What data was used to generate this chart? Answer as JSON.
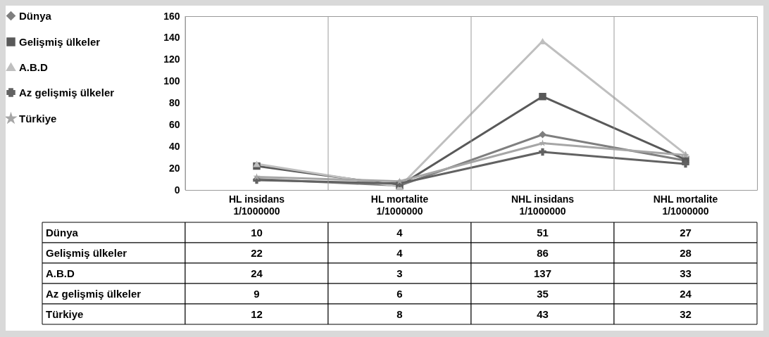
{
  "chart_data": {
    "type": "line",
    "categories": [
      "HL insidans 1/1000000",
      "HL mortalite 1/1000000",
      "NHL insidans 1/1000000",
      "NHL mortalite 1/1000000"
    ],
    "series": [
      {
        "name": "Dünya",
        "color": "#7f7f7f",
        "marker": "diamond",
        "values": [
          10,
          4,
          51,
          27
        ]
      },
      {
        "name": "Gelişmiş ülkeler",
        "color": "#595959",
        "marker": "square",
        "values": [
          22,
          4,
          86,
          28
        ]
      },
      {
        "name": "A.B.D",
        "color": "#bfbfbf",
        "marker": "triangle",
        "values": [
          24,
          3,
          137,
          33
        ]
      },
      {
        "name": "Az gelişmiş ülkeler",
        "color": "#626262",
        "marker": "cross",
        "values": [
          9,
          6,
          35,
          24
        ]
      },
      {
        "name": "Türkiye",
        "color": "#a6a6a6",
        "marker": "star",
        "values": [
          12,
          8,
          43,
          32
        ]
      }
    ],
    "ylim": [
      0,
      160
    ],
    "yticks": [
      0,
      20,
      40,
      60,
      80,
      100,
      120,
      140,
      160
    ],
    "grid": "x",
    "legend": "left",
    "data_labels": true
  }
}
